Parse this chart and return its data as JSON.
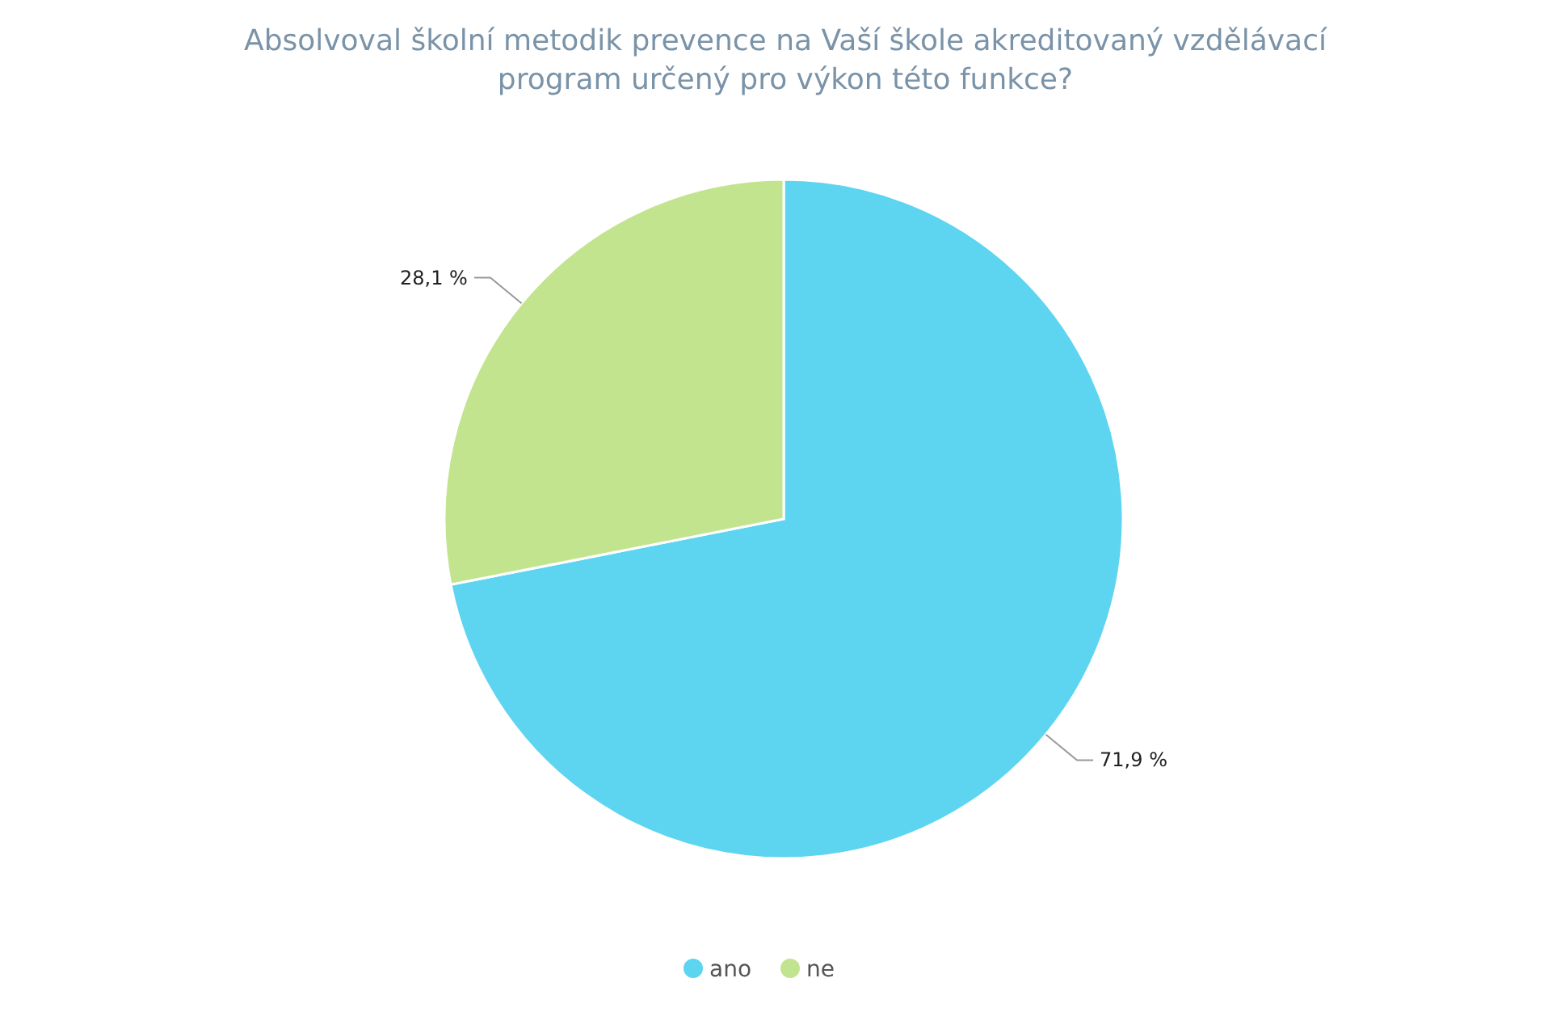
{
  "chart_data": {
    "type": "pie",
    "title": "Absolvoval školní metodik prevence na Vaší škole akreditovaný vzdělávací program určený pro výkon této funkce?",
    "categories": [
      "ano",
      "ne"
    ],
    "values": [
      71.9,
      28.1
    ],
    "colors": [
      "#5dd5f1",
      "#c3e48f"
    ],
    "value_labels": [
      "71,9 %",
      "28,1 %"
    ],
    "legend": "bottom"
  }
}
